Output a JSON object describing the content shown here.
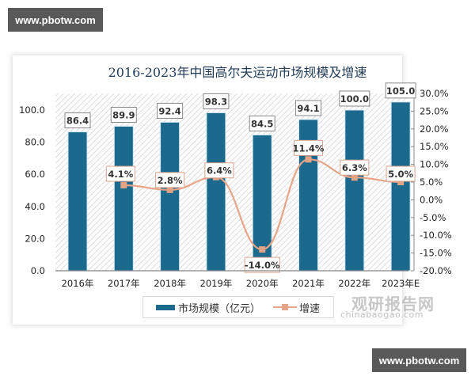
{
  "watermarks": {
    "top": "www.pbotw.com",
    "bottom": "www.pbotw.com"
  },
  "source_mark": {
    "cn": "观研报告网",
    "en": "chinabaogao.com"
  },
  "legend": {
    "bar": "市场规模（亿元）",
    "line": "增速"
  },
  "colors": {
    "bar": "#1b6a8e",
    "line": "#e8a487",
    "marker": "#e3a486",
    "title": "#1f3b57"
  },
  "chart_data": {
    "type": "bar",
    "title": "2016-2023年中国高尔夫运动市场规模及增速",
    "categories": [
      "2016年",
      "2017年",
      "2018年",
      "2019年",
      "2020年",
      "2021年",
      "2022年",
      "2023年E"
    ],
    "series": [
      {
        "name": "市场规模（亿元）",
        "type": "bar",
        "axis": "left",
        "values": [
          86.4,
          89.9,
          92.4,
          98.3,
          84.5,
          94.1,
          100.0,
          105.0
        ],
        "labels": [
          "86.4",
          "89.9",
          "92.4",
          "98.3",
          "84.5",
          "94.1",
          "100.0",
          "105.0"
        ]
      },
      {
        "name": "增速",
        "type": "line",
        "axis": "right",
        "values": [
          null,
          4.1,
          2.8,
          6.4,
          -14.0,
          11.4,
          6.3,
          5.0
        ],
        "labels": [
          "",
          "4.1%",
          "2.8%",
          "6.4%",
          "-14.0%",
          "11.4%",
          "6.3%",
          "5.0%"
        ]
      }
    ],
    "left_axis": {
      "ticks": [
        "0.0",
        "20.0",
        "40.0",
        "60.0",
        "80.0",
        "100.0"
      ],
      "range": [
        0,
        110
      ]
    },
    "right_axis": {
      "ticks": [
        "30.0%",
        "25.0%",
        "20.0%",
        "15.0%",
        "10.0%",
        "5.0%",
        "0.0%",
        "-5.0%",
        "-10.0%",
        "-15.0%",
        "-20.0%"
      ],
      "range": [
        -20,
        30
      ]
    },
    "xlabel": "",
    "ylabel": "",
    "legend_position": "bottom",
    "grid": false
  }
}
